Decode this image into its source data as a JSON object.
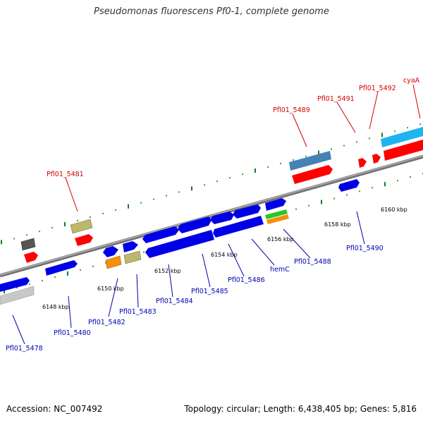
{
  "title": "Pseudomonas fluorescens Pf0-1, complete genome",
  "footer": {
    "accession": "Accession: NC_007492",
    "summary": "Topology: circular; Length: 6,438,405 bp; Genes: 5,816"
  },
  "colors": {
    "backbone": "#8c8c8c",
    "tick": "#1a7a1a",
    "label_red": "#d40000",
    "label_blue": "#0000b0",
    "gene_blue": "#0000e6",
    "gene_red": "#ff0000",
    "gene_cyan": "#1eb4f0",
    "gene_steel": "#4682b4",
    "gene_khaki": "#bdb76b",
    "gene_orange": "#f5900a",
    "gene_green": "#28c828",
    "gene_gray": "#555555",
    "gene_lightgray": "#c0c0c0"
  },
  "scale_labels": [
    "6148 kbp",
    "6150 kbp",
    "6152 kbp",
    "6154 kbp",
    "6156 kbp",
    "6158 kbp",
    "6160 kbp"
  ],
  "gene_labels": {
    "pfl01_5478": "Pfl01_5478",
    "pfl01_5480": "Pfl01_5480",
    "pfl01_5481": "Pfl01_5481",
    "pfl01_5482": "Pfl01_5482",
    "pfl01_5483": "Pfl01_5483",
    "pfl01_5484": "Pfl01_5484",
    "pfl01_5485": "Pfl01_5485",
    "pfl01_5486": "Pfl01_5486",
    "hemc": "hemC",
    "pfl01_5488": "Pfl01_5488",
    "pfl01_5489": "Pfl01_5489",
    "pfl01_5490": "Pfl01_5490",
    "pfl01_5491": "Pfl01_5491",
    "pfl01_5492": "Pfl01_5492",
    "cyaa": "cyaA"
  }
}
